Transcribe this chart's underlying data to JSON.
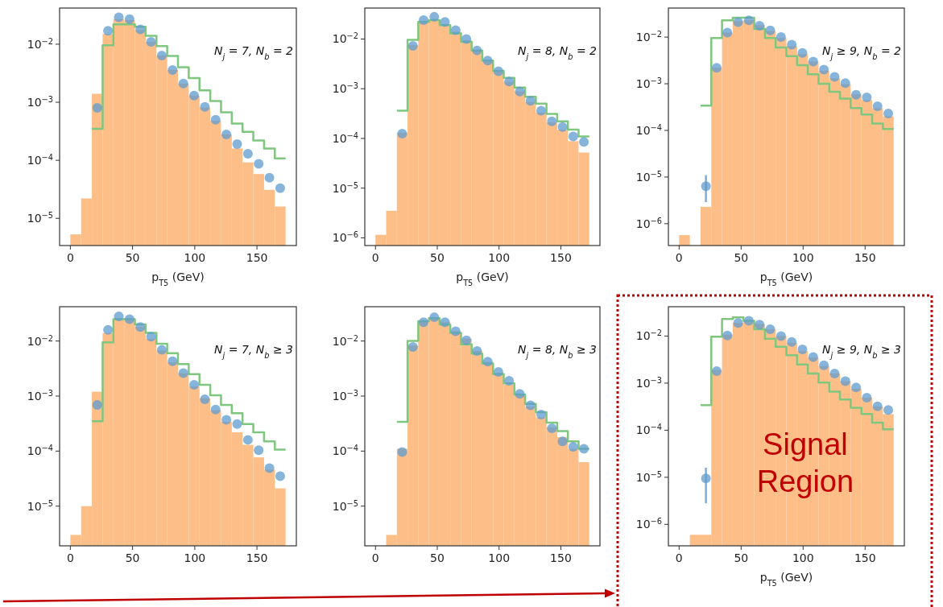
{
  "chart_data": [
    {
      "type": "histogram",
      "log": true,
      "xlabel": "p$_{T5}$ (GeV)",
      "annotations": [
        "N$_{j}$ = 7, N$_{b}$ = 2"
      ],
      "xlim": [
        -8.65,
        181.65
      ],
      "xticks": [
        0,
        50,
        100,
        150
      ],
      "ylim": [
        3.4e-06,
        0.042
      ],
      "yticks": [
        {
          "value": 1e-05,
          "label": "10$^{−5}$"
        },
        {
          "value": 0.0001,
          "label": "10$^{−4}$"
        },
        {
          "value": 0.001,
          "label": "10$^{−3}$"
        },
        {
          "value": 0.01,
          "label": "10$^{−2}$"
        }
      ],
      "bins": [
        0,
        8.65,
        17.3,
        25.95,
        34.6,
        43.25,
        51.9,
        60.55,
        69.2,
        77.85,
        86.5,
        95.15,
        103.8,
        112.45,
        121.1,
        129.75,
        138.4,
        147.05,
        155.7,
        164.35,
        173
      ],
      "series": [
        {
          "type": "histogram",
          "color": "#fdbe87",
          "values": [
            5.3e-06,
            2.2e-05,
            0.0014,
            0.015,
            0.027,
            0.026,
            0.0175,
            0.011,
            0.0064,
            0.0036,
            0.0021,
            0.0013,
            0.00081,
            0.00048,
            0.00028,
            0.00016,
            9.2e-05,
            5.8e-05,
            3.1e-05,
            1.6e-05
          ]
        },
        {
          "type": "step",
          "color": "#7fc77f",
          "x": [
            17.3,
            25.95,
            34.6,
            43.25,
            51.9,
            60.55,
            69.2,
            77.85,
            86.5,
            95.15,
            103.8,
            112.45,
            121.1,
            129.75,
            138.4,
            147.05,
            155.7,
            164.35,
            173
          ],
          "values": [
            0.00035,
            0.0096,
            0.022,
            0.022,
            0.02,
            0.014,
            0.0093,
            0.0063,
            0.004,
            0.0026,
            0.0016,
            0.00105,
            0.00067,
            0.00043,
            0.00031,
            0.00022,
            0.00016,
            0.000108,
            0.000108
          ]
        },
        {
          "type": "scatter",
          "marker": "circle",
          "color": "#5d9bcf",
          "x": [
            21.625,
            30.275,
            38.925,
            47.575,
            56.225,
            64.875,
            73.525,
            82.175,
            90.825,
            99.475,
            108.125,
            116.775,
            125.425,
            134.075,
            142.725,
            151.375,
            160.025,
            168.675
          ],
          "values": [
            0.0008,
            0.017,
            0.029,
            0.027,
            0.018,
            0.011,
            0.0064,
            0.0036,
            0.0021,
            0.0013,
            0.00083,
            0.0005,
            0.00028,
            0.00019,
            0.00013,
            8.7e-05,
            5e-05,
            3.3e-05
          ]
        }
      ]
    },
    {
      "type": "histogram",
      "log": true,
      "xlabel": "p$_{T5}$ (GeV)",
      "annotations": [
        "N$_{j}$ = 8, N$_{b}$ = 2"
      ],
      "xlim": [
        -8.65,
        181.65
      ],
      "xticks": [
        0,
        50,
        100,
        150
      ],
      "ylim": [
        7e-07,
        0.042
      ],
      "yticks": [
        {
          "value": 1e-06,
          "label": "10$^{−6}$"
        },
        {
          "value": 1e-05,
          "label": "10$^{−5}$"
        },
        {
          "value": 0.0001,
          "label": "10$^{−4}$"
        },
        {
          "value": 0.001,
          "label": "10$^{−3}$"
        },
        {
          "value": 0.01,
          "label": "10$^{−2}$"
        }
      ],
      "bins": [
        0,
        8.65,
        17.3,
        25.95,
        34.6,
        43.25,
        51.9,
        60.55,
        69.2,
        77.85,
        86.5,
        95.15,
        103.8,
        112.45,
        121.1,
        129.75,
        138.4,
        147.05,
        155.7,
        164.35,
        173
      ],
      "series": [
        {
          "type": "histogram",
          "color": "#fdbe87",
          "values": [
            1.15e-06,
            3.5e-06,
            0.00013,
            0.0075,
            0.023,
            0.025,
            0.02,
            0.014,
            0.0094,
            0.0057,
            0.0036,
            0.0022,
            0.00137,
            0.00088,
            0.00054,
            0.00033,
            0.00021,
            0.00015,
            8.8e-05,
            5.2e-05
          ]
        },
        {
          "type": "step",
          "color": "#7fc77f",
          "x": [
            17.3,
            25.95,
            34.6,
            43.25,
            51.9,
            60.55,
            69.2,
            77.85,
            86.5,
            95.15,
            103.8,
            112.45,
            121.1,
            129.75,
            138.4,
            147.05,
            155.7,
            164.35,
            173
          ],
          "values": [
            0.00036,
            0.0096,
            0.022,
            0.024,
            0.019,
            0.013,
            0.0088,
            0.0059,
            0.0037,
            0.0023,
            0.00165,
            0.00106,
            0.00069,
            0.0005,
            0.00031,
            0.00022,
            0.00015,
            0.00011,
            0.00011
          ]
        },
        {
          "type": "scatter",
          "marker": "circle",
          "color": "#5d9bcf",
          "x": [
            21.625,
            30.275,
            38.925,
            47.575,
            56.225,
            64.875,
            73.525,
            82.175,
            90.825,
            99.475,
            108.125,
            116.775,
            125.425,
            134.075,
            142.725,
            151.375,
            160.025,
            168.675
          ],
          "values": [
            0.000125,
            0.0073,
            0.024,
            0.028,
            0.022,
            0.015,
            0.01,
            0.0059,
            0.0037,
            0.00225,
            0.0014,
            0.00088,
            0.00057,
            0.00036,
            0.00022,
            0.00017,
            0.00011,
            8.5e-05
          ]
        }
      ]
    },
    {
      "type": "histogram",
      "log": true,
      "xlabel": "p$_{T5}$ (GeV)",
      "annotations": [
        "N$_{j}$ ≥ 9, N$_{b}$ = 2"
      ],
      "xlim": [
        -8.65,
        181.65
      ],
      "xticks": [
        0,
        50,
        100,
        150
      ],
      "ylim": [
        3.4e-07,
        0.042
      ],
      "yticks": [
        {
          "value": 1e-06,
          "label": "10$^{−6}$"
        },
        {
          "value": 1e-05,
          "label": "10$^{−5}$"
        },
        {
          "value": 0.0001,
          "label": "10$^{−4}$"
        },
        {
          "value": 0.001,
          "label": "10$^{−3}$"
        },
        {
          "value": 0.01,
          "label": "10$^{−2}$"
        }
      ],
      "bins": [
        0,
        8.65,
        17.3,
        25.95,
        34.6,
        43.25,
        51.9,
        60.55,
        69.2,
        77.85,
        86.5,
        95.15,
        103.8,
        112.45,
        121.1,
        129.75,
        138.4,
        147.05,
        155.7,
        164.35,
        173
      ],
      "series": [
        {
          "type": "histogram",
          "color": "#fdbe87",
          "values": [
            5.7e-07,
            null,
            2.3e-06,
            0.0022,
            0.0125,
            0.022,
            0.023,
            0.018,
            0.0135,
            0.0096,
            0.0064,
            0.0043,
            0.003,
            0.0019,
            0.0013,
            0.00098,
            0.00059,
            0.00045,
            0.0003,
            0.0002
          ]
        },
        {
          "type": "step",
          "color": "#7fc77f",
          "x": [
            17.3,
            25.95,
            34.6,
            43.25,
            51.9,
            60.55,
            69.2,
            77.85,
            86.5,
            95.15,
            103.8,
            112.45,
            121.1,
            129.75,
            138.4,
            147.05,
            155.7,
            164.35,
            173
          ],
          "values": [
            0.00034,
            0.0096,
            0.023,
            0.026,
            0.026,
            0.015,
            0.0096,
            0.006,
            0.0039,
            0.0025,
            0.0016,
            0.001,
            0.00067,
            0.00048,
            0.0003,
            0.00022,
            0.00014,
            0.000107,
            0.000107
          ]
        },
        {
          "type": "scatter",
          "marker": "circle",
          "color": "#5d9bcf",
          "x": [
            21.625,
            30.275,
            38.925,
            47.575,
            56.225,
            64.875,
            73.525,
            82.175,
            90.825,
            99.475,
            108.125,
            116.775,
            125.425,
            134.075,
            142.725,
            151.375,
            160.025,
            168.675
          ],
          "values": [
            6.4e-06,
            0.0022,
            0.0125,
            0.021,
            0.023,
            0.0175,
            0.014,
            0.01,
            0.0069,
            0.0046,
            0.003,
            0.002,
            0.0014,
            0.00103,
            0.00058,
            0.00051,
            0.00033,
            0.00023
          ],
          "errors": [
            [
              2.9e-06,
              1.1e-05
            ],
            null,
            null,
            null,
            null,
            null,
            null,
            null,
            null,
            null,
            null,
            null,
            null,
            null,
            null,
            null,
            null,
            null
          ]
        }
      ]
    },
    {
      "type": "histogram",
      "log": true,
      "annotations": [
        "N$_{j}$ = 7, N$_{b}$ ≥ 3"
      ],
      "xlim": [
        -8.65,
        181.65
      ],
      "xticks": [
        0,
        50,
        100,
        150
      ],
      "ylim": [
        1.9e-06,
        0.042
      ],
      "yticks": [
        {
          "value": 1e-05,
          "label": "10$^{−5}$"
        },
        {
          "value": 0.0001,
          "label": "10$^{−4}$"
        },
        {
          "value": 0.001,
          "label": "10$^{−3}$"
        },
        {
          "value": 0.01,
          "label": "10$^{−2}$"
        }
      ],
      "bins": [
        0,
        8.65,
        17.3,
        25.95,
        34.6,
        43.25,
        51.9,
        60.55,
        69.2,
        77.85,
        86.5,
        95.15,
        103.8,
        112.45,
        121.1,
        129.75,
        138.4,
        147.05,
        155.7,
        164.35,
        173
      ],
      "series": [
        {
          "type": "histogram",
          "color": "#fdbe87",
          "values": [
            3e-06,
            1e-05,
            0.0012,
            0.014,
            0.026,
            0.025,
            0.018,
            0.011,
            0.0067,
            0.0041,
            0.0026,
            0.0015,
            0.00091,
            0.00055,
            0.00034,
            0.00022,
            0.00013,
            7.7e-05,
            4.6e-05,
            2.1e-05
          ]
        },
        {
          "type": "step",
          "color": "#7fc77f",
          "x": [
            17.3,
            25.95,
            34.6,
            43.25,
            51.9,
            60.55,
            69.2,
            77.85,
            86.5,
            95.15,
            103.8,
            112.45,
            121.1,
            129.75,
            138.4,
            147.05,
            155.7,
            164.35,
            173
          ],
          "values": [
            0.00035,
            0.0095,
            0.025,
            0.025,
            0.02,
            0.014,
            0.0089,
            0.006,
            0.0038,
            0.0025,
            0.0016,
            0.00103,
            0.00069,
            0.00049,
            0.00031,
            0.00022,
            0.00015,
            0.000106,
            0.000106
          ]
        },
        {
          "type": "scatter",
          "marker": "circle",
          "color": "#5d9bcf",
          "x": [
            21.625,
            30.275,
            38.925,
            47.575,
            56.225,
            64.875,
            73.525,
            82.175,
            90.825,
            99.475,
            108.125,
            116.775,
            125.425,
            134.075,
            142.725,
            151.375,
            160.025,
            168.675
          ],
          "values": [
            0.00069,
            0.016,
            0.028,
            0.025,
            0.018,
            0.012,
            0.0069,
            0.0043,
            0.0026,
            0.0016,
            0.00087,
            0.00057,
            0.00037,
            0.00031,
            0.00016,
            0.000104,
            4.9e-05,
            3.5e-05
          ]
        }
      ]
    },
    {
      "type": "histogram",
      "log": true,
      "annotations": [
        "N$_{j}$ = 8, N$_{b}$ ≥ 3"
      ],
      "xlim": [
        -8.65,
        181.65
      ],
      "xticks": [
        0,
        50,
        100,
        150
      ],
      "ylim": [
        1.9e-06,
        0.042
      ],
      "yticks": [
        {
          "value": 1e-05,
          "label": "10$^{−5}$"
        },
        {
          "value": 0.0001,
          "label": "10$^{−4}$"
        },
        {
          "value": 0.001,
          "label": "10$^{−3}$"
        },
        {
          "value": 0.01,
          "label": "10$^{−2}$"
        }
      ],
      "bins": [
        0,
        8.65,
        17.3,
        25.95,
        34.6,
        43.25,
        51.9,
        60.55,
        69.2,
        77.85,
        86.5,
        95.15,
        103.8,
        112.45,
        121.1,
        129.75,
        138.4,
        147.05,
        155.7,
        164.35,
        173
      ],
      "series": [
        {
          "type": "histogram",
          "color": "#fdbe87",
          "values": [
            null,
            3e-06,
            0.00011,
            0.0082,
            0.023,
            0.026,
            0.022,
            0.015,
            0.011,
            0.0066,
            0.0042,
            0.00265,
            0.0016,
            0.0011,
            0.00064,
            0.00041,
            0.00027,
            0.00018,
            0.00011,
            6.3e-05
          ]
        },
        {
          "type": "step",
          "color": "#7fc77f",
          "x": [
            17.3,
            25.95,
            34.6,
            43.25,
            51.9,
            60.55,
            69.2,
            77.85,
            86.5,
            95.15,
            103.8,
            112.45,
            121.1,
            129.75,
            138.4,
            147.05,
            155.7,
            164.35,
            173
          ],
          "values": [
            0.00034,
            0.01,
            0.023,
            0.026,
            0.02,
            0.014,
            0.0087,
            0.0059,
            0.0039,
            0.0025,
            0.0017,
            0.00107,
            0.00072,
            0.00051,
            0.00033,
            0.00023,
            0.00015,
            0.00011,
            0.00011
          ]
        },
        {
          "type": "scatter",
          "marker": "circle",
          "color": "#5d9bcf",
          "x": [
            21.625,
            30.275,
            38.925,
            47.575,
            56.225,
            64.875,
            73.525,
            82.175,
            90.825,
            99.475,
            108.125,
            116.775,
            125.425,
            134.075,
            142.725,
            151.375,
            160.025,
            168.675
          ],
          "values": [
            9.6e-05,
            0.0078,
            0.022,
            0.027,
            0.022,
            0.015,
            0.0103,
            0.0066,
            0.0042,
            0.00275,
            0.0019,
            0.0011,
            0.00068,
            0.00046,
            0.00026,
            0.00015,
            0.00012,
            0.00011
          ]
        }
      ]
    },
    {
      "type": "histogram",
      "log": true,
      "xlabel": "p$_{T5}$ (GeV)",
      "annotations": [
        "N$_{j}$ ≥ 9, N$_{b}$ ≥ 3",
        "Signal Region"
      ],
      "xlim": [
        -8.65,
        181.65
      ],
      "xticks": [
        0,
        50,
        100,
        150
      ],
      "ylim": [
        3.5e-07,
        0.042
      ],
      "yticks": [
        {
          "value": 1e-06,
          "label": "10$^{−6}$"
        },
        {
          "value": 1e-05,
          "label": "10$^{−5}$"
        },
        {
          "value": 0.0001,
          "label": "10$^{−4}$"
        },
        {
          "value": 0.001,
          "label": "10$^{−3}$"
        },
        {
          "value": 0.01,
          "label": "10$^{−2}$"
        }
      ],
      "bins": [
        0,
        8.65,
        17.3,
        25.95,
        34.6,
        43.25,
        51.9,
        60.55,
        69.2,
        77.85,
        86.5,
        95.15,
        103.8,
        112.45,
        121.1,
        129.75,
        138.4,
        147.05,
        155.7,
        164.35,
        173
      ],
      "series": [
        {
          "type": "histogram",
          "color": "#fdbe87",
          "values": [
            null,
            6e-07,
            6e-07,
            0.0019,
            0.0107,
            0.019,
            0.021,
            0.018,
            0.014,
            0.01,
            0.0072,
            0.0048,
            0.0035,
            0.0023,
            0.0016,
            0.0011,
            0.00076,
            0.00049,
            0.00032,
            0.00022
          ]
        },
        {
          "type": "step",
          "color": "#7fc77f",
          "x": [
            17.3,
            25.95,
            34.6,
            43.25,
            51.9,
            60.55,
            69.2,
            77.85,
            86.5,
            95.15,
            103.8,
            112.45,
            121.1,
            129.75,
            138.4,
            147.05,
            155.7,
            164.35,
            173
          ],
          "values": [
            0.00034,
            0.0097,
            0.023,
            0.025,
            0.021,
            0.014,
            0.0088,
            0.0059,
            0.0039,
            0.0025,
            0.0016,
            0.00103,
            0.00066,
            0.00045,
            0.0003,
            0.00022,
            0.000145,
            0.000105,
            0.000105
          ]
        },
        {
          "type": "scatter",
          "marker": "circle",
          "color": "#5d9bcf",
          "x": [
            21.625,
            30.275,
            38.925,
            47.575,
            56.225,
            64.875,
            73.525,
            82.175,
            90.825,
            99.475,
            108.125,
            116.775,
            125.425,
            134.075,
            142.725,
            151.375,
            160.025,
            168.675
          ],
          "values": [
            9.5e-06,
            0.0018,
            0.0103,
            0.019,
            0.021,
            0.0175,
            0.014,
            0.01,
            0.0075,
            0.0052,
            0.0036,
            0.0024,
            0.0016,
            0.0011,
            0.00081,
            0.00049,
            0.00032,
            0.00027
          ],
          "errors": [
            [
              2.8e-06,
              1.6e-05
            ],
            null,
            null,
            null,
            null,
            null,
            null,
            null,
            null,
            null,
            null,
            null,
            null,
            null,
            null,
            null,
            null,
            null
          ]
        }
      ]
    }
  ]
}
